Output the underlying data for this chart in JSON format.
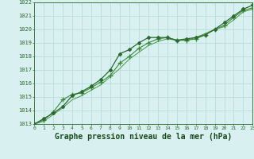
{
  "title": "Graphe pression niveau de la mer (hPa)",
  "x_ticks": [
    0,
    1,
    2,
    3,
    4,
    5,
    6,
    7,
    8,
    9,
    10,
    11,
    12,
    13,
    14,
    15,
    16,
    17,
    18,
    19,
    20,
    21,
    22,
    23
  ],
  "xlim": [
    0,
    23
  ],
  "ylim": [
    1013,
    1022
  ],
  "yticks": [
    1013,
    1014,
    1015,
    1016,
    1017,
    1018,
    1019,
    1020,
    1021,
    1022
  ],
  "line1": {
    "x": [
      0,
      1,
      2,
      3,
      4,
      5,
      6,
      7,
      8,
      9,
      10,
      11,
      12,
      13,
      14,
      15,
      16,
      17,
      18,
      19,
      20,
      21,
      22,
      23
    ],
    "y": [
      1013.0,
      1013.4,
      1013.8,
      1014.3,
      1015.1,
      1015.4,
      1015.8,
      1016.3,
      1017.0,
      1018.2,
      1018.5,
      1019.0,
      1019.4,
      1019.4,
      1019.4,
      1019.2,
      1019.3,
      1019.4,
      1019.6,
      1020.0,
      1020.5,
      1021.0,
      1021.5,
      1021.8
    ],
    "color": "#2d6a2d",
    "marker": "D",
    "markersize": 2.0,
    "linewidth": 0.9
  },
  "line2": {
    "x": [
      0,
      1,
      2,
      3,
      4,
      5,
      6,
      7,
      8,
      9,
      10,
      11,
      12,
      13,
      14,
      15,
      16,
      17,
      18,
      19,
      20,
      21,
      22,
      23
    ],
    "y": [
      1013.0,
      1013.3,
      1013.9,
      1014.8,
      1015.2,
      1015.3,
      1015.7,
      1016.1,
      1016.6,
      1017.5,
      1018.0,
      1018.6,
      1019.0,
      1019.3,
      1019.4,
      1019.2,
      1019.2,
      1019.3,
      1019.6,
      1020.0,
      1020.3,
      1020.9,
      1021.4,
      1021.6
    ],
    "color": "#3a8a3a",
    "marker": "+",
    "markersize": 4.0,
    "linewidth": 0.8
  },
  "line3": {
    "x": [
      0,
      1,
      2,
      3,
      4,
      5,
      6,
      7,
      8,
      9,
      10,
      11,
      12,
      13,
      14,
      15,
      16,
      17,
      18,
      19,
      20,
      21,
      22,
      23
    ],
    "y": [
      1013.0,
      1013.2,
      1013.7,
      1014.2,
      1014.8,
      1015.1,
      1015.5,
      1015.9,
      1016.5,
      1017.1,
      1017.8,
      1018.3,
      1018.8,
      1019.1,
      1019.3,
      1019.2,
      1019.2,
      1019.4,
      1019.7,
      1020.0,
      1020.2,
      1020.7,
      1021.3,
      1021.5
    ],
    "color": "#4a9a4a",
    "marker": null,
    "linewidth": 0.7
  },
  "bg_color": "#d8f0f0",
  "grid_color": "#b0d8d8",
  "axes_color": "#2d6a2d",
  "title_color": "#1a4a1a",
  "title_fontsize": 7.0
}
